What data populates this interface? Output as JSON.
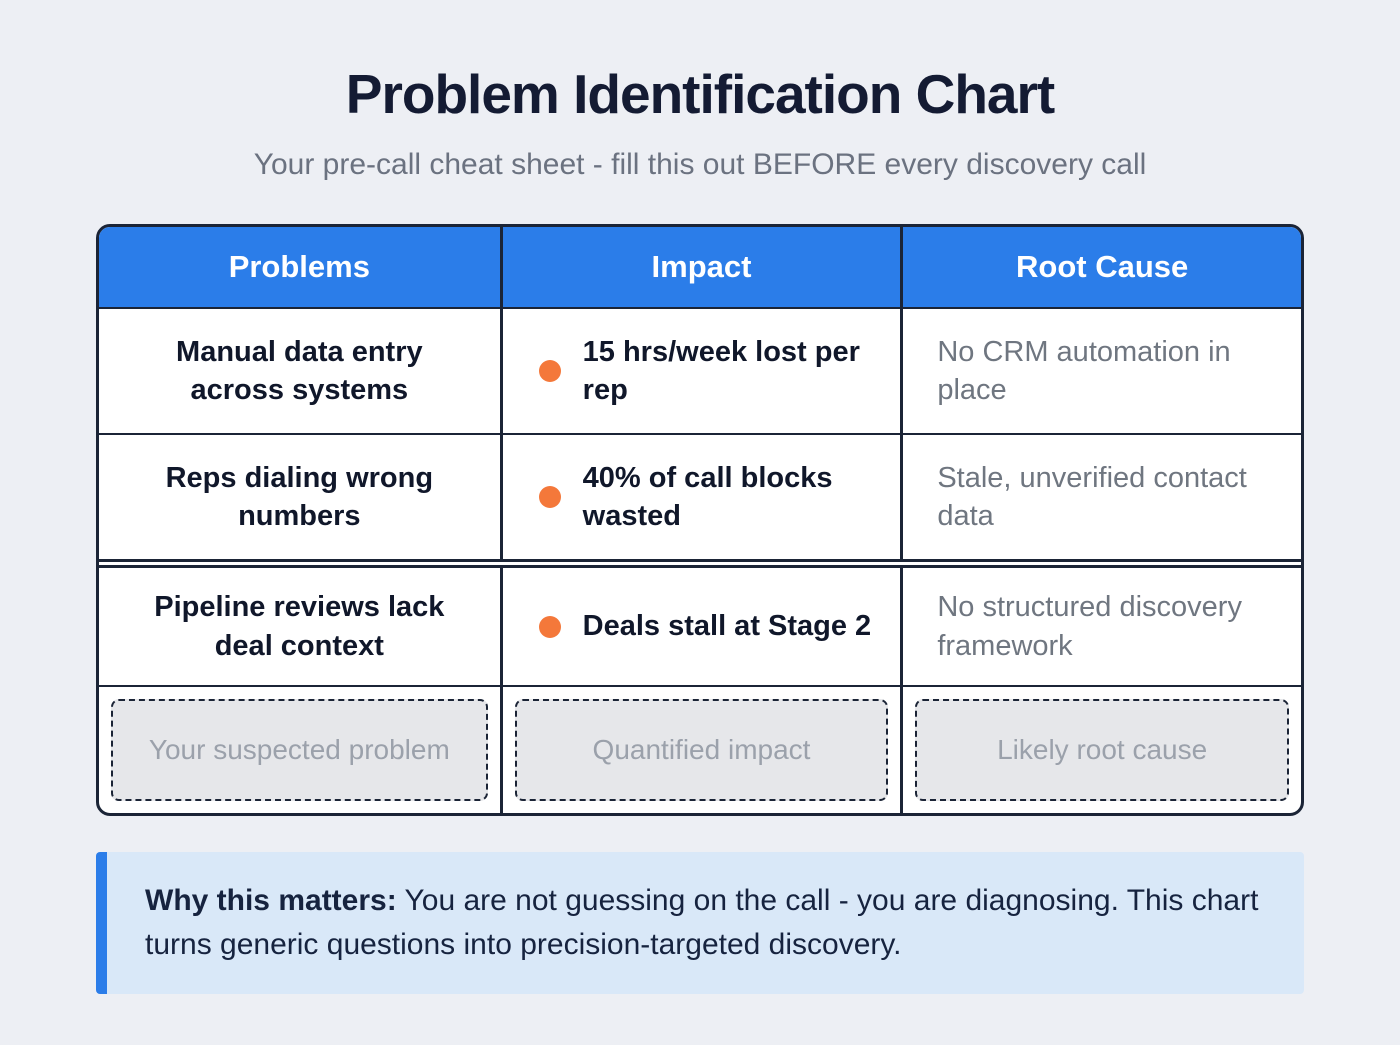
{
  "page": {
    "title": "Problem Identification Chart",
    "subtitle": "Your pre-call cheat sheet - fill this out BEFORE every discovery call"
  },
  "table": {
    "headers": [
      "Problems",
      "Impact",
      "Root Cause"
    ],
    "rows": [
      {
        "problem": "Manual data entry across systems",
        "impact": "15 hrs/week lost per rep",
        "root_cause": "No CRM automation in place"
      },
      {
        "problem": "Reps dialing wrong numbers",
        "impact": "40% of call blocks wasted",
        "root_cause": "Stale, unverified contact data"
      },
      {
        "problem": "Pipeline reviews lack deal context",
        "impact": "Deals stall at Stage 2",
        "root_cause": "No structured discovery framework"
      }
    ],
    "inputs": {
      "problem_placeholder": "Your suspected problem",
      "impact_placeholder": "Quantified impact",
      "root_cause_placeholder": "Likely root cause"
    }
  },
  "callout": {
    "lead": "Why this matters:",
    "text": "You are not guessing on the call - you are diagnosing. This chart turns generic questions into precision-targeted discovery."
  },
  "colors": {
    "header_bg": "#2b7de9",
    "accent_orange": "#f4783a",
    "callout_bg": "#d9e8f8",
    "callout_accent": "#2b7de9",
    "table_border": "#1b2436"
  },
  "chart_data": {
    "type": "table",
    "title": "Problem Identification Chart",
    "subtitle": "Your pre-call cheat sheet - fill this out BEFORE every discovery call",
    "columns": [
      "Problems",
      "Impact",
      "Root Cause"
    ],
    "rows": [
      [
        "Manual data entry across systems",
        "15 hrs/week lost per rep",
        "No CRM automation in place"
      ],
      [
        "Reps dialing wrong numbers",
        "40% of call blocks wasted",
        "Stale, unverified contact data"
      ],
      [
        "Pipeline reviews lack deal context",
        "Deals stall at Stage 2",
        "No structured discovery framework"
      ]
    ],
    "placeholder_row": [
      "Your suspected problem",
      "Quantified impact",
      "Likely root cause"
    ],
    "annotation": "Why this matters: You are not guessing on the call - you are diagnosing. This chart turns generic questions into precision-targeted discovery."
  }
}
